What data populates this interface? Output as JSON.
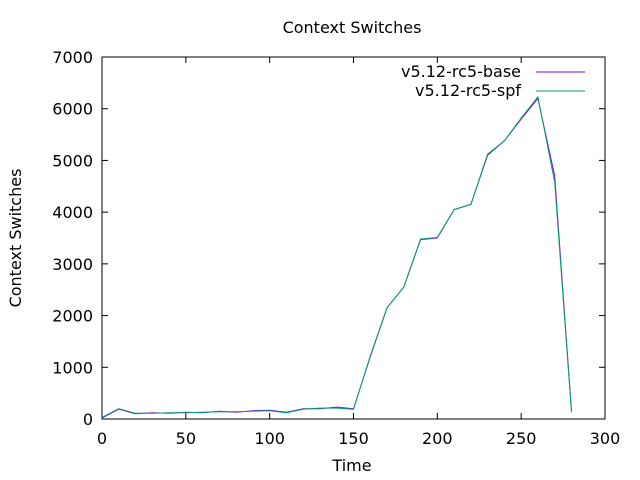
{
  "chart_data": {
    "type": "line",
    "title": "Context Switches",
    "xlabel": "Time",
    "ylabel": "Context Switches",
    "xlim": [
      0,
      300
    ],
    "ylim": [
      0,
      7000
    ],
    "xticks": [
      0,
      50,
      100,
      150,
      200,
      250,
      300
    ],
    "yticks": [
      0,
      1000,
      2000,
      3000,
      4000,
      5000,
      6000,
      7000
    ],
    "grid": false,
    "legend_position": "top-right",
    "series": [
      {
        "name": "v5.12-rc5-base",
        "color": "#9400d3",
        "dash": "solid",
        "x": [
          0,
          10,
          20,
          30,
          40,
          50,
          60,
          70,
          80,
          90,
          100,
          110,
          120,
          130,
          140,
          150,
          160,
          170,
          180,
          190,
          200,
          210,
          220,
          230,
          240,
          250,
          260,
          270,
          280
        ],
        "y": [
          20,
          190,
          100,
          120,
          110,
          130,
          120,
          150,
          130,
          160,
          170,
          130,
          200,
          200,
          230,
          200,
          1200,
          2150,
          2550,
          3470,
          3500,
          4050,
          4150,
          5100,
          5380,
          5800,
          6200,
          4700,
          150
        ]
      },
      {
        "name": "v5.12-rc5-spf",
        "color": "#009e73",
        "dash": "solid",
        "x": [
          0,
          10,
          20,
          30,
          40,
          50,
          60,
          70,
          80,
          90,
          100,
          110,
          120,
          130,
          140,
          150,
          160,
          170,
          180,
          190,
          200,
          210,
          220,
          230,
          240,
          250,
          260,
          270,
          280
        ],
        "y": [
          30,
          200,
          110,
          110,
          120,
          120,
          130,
          140,
          140,
          150,
          160,
          120,
          190,
          210,
          210,
          190,
          1220,
          2150,
          2550,
          3480,
          3510,
          4050,
          4150,
          5120,
          5380,
          5820,
          6230,
          4580,
          130
        ]
      }
    ]
  }
}
